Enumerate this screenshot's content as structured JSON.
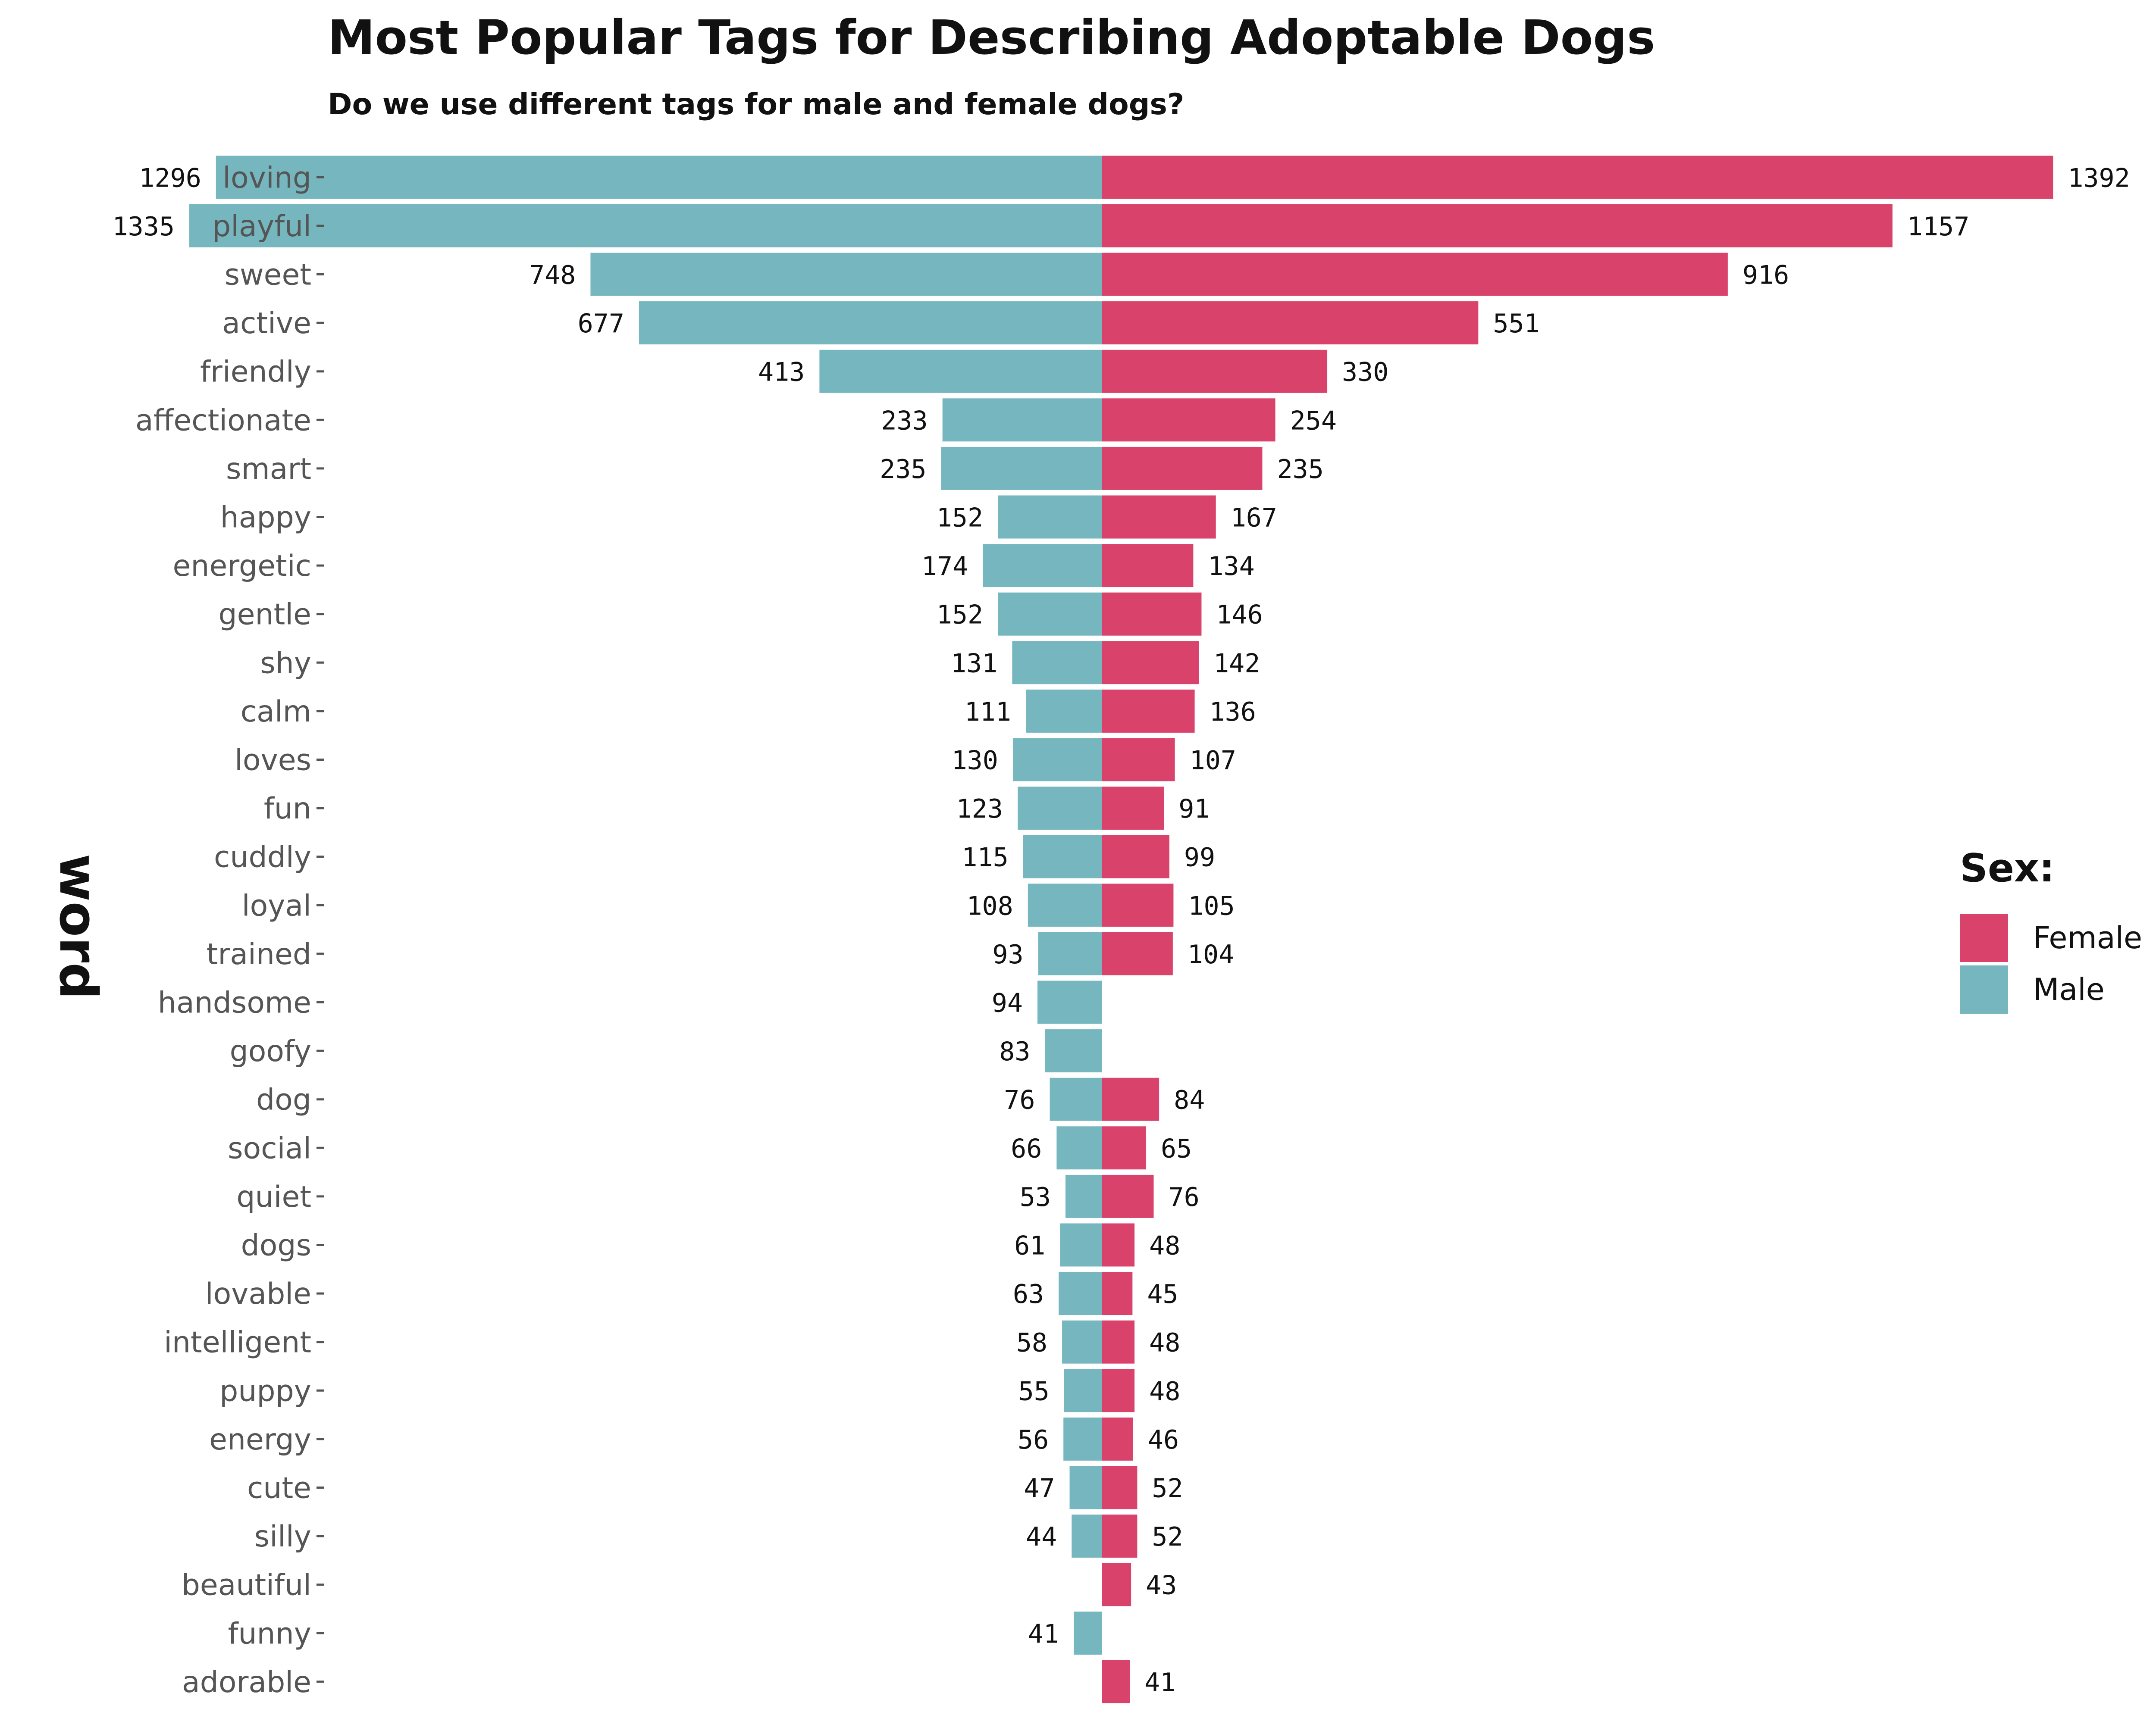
{
  "chart_data": {
    "type": "bar",
    "orientation": "horizontal-diverging",
    "title": "Most Popular Tags for Describing Adoptable Dogs",
    "subtitle": "Do we use different tags for male and female dogs?",
    "ylabel": "word",
    "xlabel": "",
    "grid": false,
    "legend": {
      "title": "Sex:",
      "position": "right",
      "entries": [
        {
          "name": "Female",
          "color": "#D9426A"
        },
        {
          "name": "Male",
          "color": "#76B7BF"
        }
      ]
    },
    "categories": [
      "loving",
      "playful",
      "sweet",
      "active",
      "friendly",
      "affectionate",
      "smart",
      "happy",
      "energetic",
      "gentle",
      "shy",
      "calm",
      "loves",
      "fun",
      "cuddly",
      "loyal",
      "trained",
      "handsome",
      "goofy",
      "dog",
      "social",
      "quiet",
      "dogs",
      "lovable",
      "intelligent",
      "puppy",
      "energy",
      "cute",
      "silly",
      "beautiful",
      "funny",
      "adorable"
    ],
    "series": [
      {
        "name": "Male",
        "color": "#76B7BF",
        "values": [
          1296,
          1335,
          748,
          677,
          413,
          233,
          235,
          152,
          174,
          152,
          131,
          111,
          130,
          123,
          115,
          108,
          93,
          94,
          83,
          76,
          66,
          53,
          61,
          63,
          58,
          55,
          56,
          47,
          44,
          null,
          41,
          null
        ]
      },
      {
        "name": "Female",
        "color": "#D9426A",
        "values": [
          1392,
          1157,
          916,
          551,
          330,
          254,
          235,
          167,
          134,
          146,
          142,
          136,
          107,
          91,
          99,
          105,
          104,
          null,
          null,
          84,
          65,
          76,
          48,
          45,
          48,
          48,
          46,
          52,
          52,
          43,
          null,
          41
        ]
      }
    ]
  }
}
